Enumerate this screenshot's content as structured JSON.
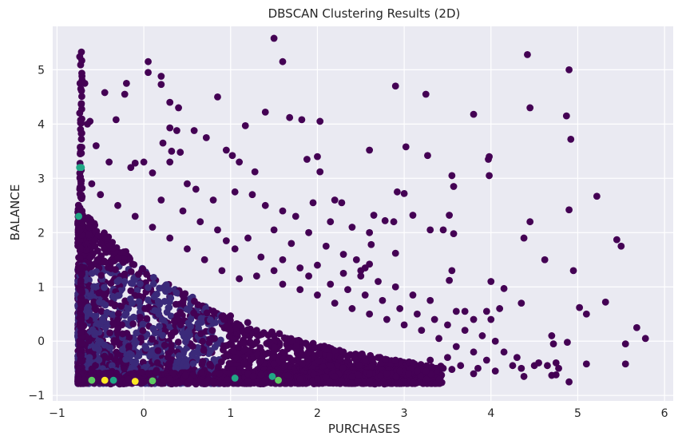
{
  "chart_data": {
    "type": "scatter",
    "title": "DBSCAN Clustering Results (2D)",
    "xlabel": "PURCHASES",
    "ylabel": "BALANCE",
    "xlim": [
      -1.05,
      6.1
    ],
    "ylim": [
      -1.1,
      5.8
    ],
    "x_ticks": [
      -1,
      0,
      1,
      2,
      3,
      4,
      5,
      6
    ],
    "y_ticks": [
      -1,
      0,
      1,
      2,
      3,
      4,
      5
    ],
    "grid": true,
    "legend": "none",
    "colors": {
      "background": "#eaeaf2",
      "grid": "#ffffff",
      "cluster_noise": "#440154",
      "cluster_main": "#3b2a7a",
      "cluster_small_teal": "#21a685",
      "cluster_small_yellow": "#fde725",
      "cluster_small_green": "#5ec962"
    },
    "series": [
      {
        "cluster": -1,
        "color": "#440154",
        "points": [
          [
            1.5,
            5.58
          ],
          [
            4.42,
            5.28
          ],
          [
            0.05,
            5.15
          ],
          [
            1.6,
            5.15
          ],
          [
            4.9,
            5.0
          ],
          [
            0.2,
            4.88
          ],
          [
            -0.68,
            4.75
          ],
          [
            -0.2,
            4.75
          ],
          [
            2.9,
            4.7
          ],
          [
            0.2,
            4.73
          ],
          [
            -0.45,
            4.58
          ],
          [
            -0.22,
            4.55
          ],
          [
            3.25,
            4.55
          ],
          [
            0.85,
            4.5
          ],
          [
            0.3,
            4.4
          ],
          [
            4.45,
            4.3
          ],
          [
            0.4,
            4.3
          ],
          [
            1.4,
            4.22
          ],
          [
            3.8,
            4.18
          ],
          [
            4.87,
            4.15
          ],
          [
            1.68,
            4.12
          ],
          [
            1.82,
            4.08
          ],
          [
            2.03,
            4.05
          ],
          [
            -0.62,
            4.05
          ],
          [
            1.17,
            3.97
          ],
          [
            -0.32,
            4.08
          ],
          [
            0.3,
            3.93
          ],
          [
            0.58,
            3.88
          ],
          [
            4.92,
            3.72
          ],
          [
            0.38,
            3.88
          ],
          [
            0.72,
            3.75
          ],
          [
            0.22,
            3.65
          ],
          [
            3.02,
            3.58
          ],
          [
            2.6,
            3.52
          ],
          [
            0.95,
            3.52
          ],
          [
            0.32,
            3.5
          ],
          [
            0.42,
            3.48
          ],
          [
            3.27,
            3.42
          ],
          [
            1.02,
            3.42
          ],
          [
            2.0,
            3.4
          ],
          [
            3.98,
            3.4
          ],
          [
            3.97,
            3.35
          ],
          [
            1.88,
            3.35
          ],
          [
            0.3,
            3.3
          ],
          [
            1.1,
            3.3
          ],
          [
            0.0,
            3.3
          ],
          [
            -0.1,
            3.28
          ],
          [
            2.03,
            3.12
          ],
          [
            1.28,
            3.12
          ],
          [
            3.55,
            3.05
          ],
          [
            3.98,
            3.05
          ],
          [
            3.57,
            2.85
          ],
          [
            0.6,
            2.8
          ],
          [
            1.05,
            2.75
          ],
          [
            2.92,
            2.75
          ],
          [
            3.0,
            2.72
          ],
          [
            5.22,
            2.67
          ],
          [
            2.2,
            2.6
          ],
          [
            2.28,
            2.55
          ],
          [
            1.95,
            2.55
          ],
          [
            4.45,
            2.2
          ],
          [
            4.9,
            2.42
          ],
          [
            3.52,
            2.32
          ],
          [
            2.88,
            2.2
          ],
          [
            2.78,
            2.22
          ],
          [
            3.1,
            2.32
          ],
          [
            2.65,
            2.32
          ],
          [
            3.3,
            2.05
          ],
          [
            3.45,
            2.05
          ],
          [
            3.57,
            1.98
          ],
          [
            4.38,
            1.9
          ],
          [
            5.45,
            1.87
          ],
          [
            5.5,
            1.75
          ],
          [
            2.62,
            1.78
          ],
          [
            2.9,
            1.62
          ],
          [
            2.6,
            1.42
          ],
          [
            4.62,
            1.5
          ],
          [
            4.95,
            1.3
          ],
          [
            3.55,
            1.3
          ],
          [
            2.5,
            1.3
          ],
          [
            2.55,
            1.35
          ],
          [
            4.0,
            1.1
          ],
          [
            3.52,
            1.12
          ],
          [
            4.15,
            0.97
          ],
          [
            5.32,
            0.72
          ],
          [
            5.02,
            0.62
          ],
          [
            5.1,
            0.5
          ],
          [
            5.68,
            0.25
          ],
          [
            5.78,
            0.05
          ],
          [
            5.55,
            -0.05
          ],
          [
            4.55,
            -0.4
          ],
          [
            4.65,
            -0.45
          ],
          [
            4.78,
            -0.5
          ],
          [
            4.75,
            -0.62
          ],
          [
            4.9,
            -0.75
          ],
          [
            5.1,
            -0.42
          ],
          [
            5.55,
            -0.42
          ],
          [
            4.75,
            -0.4
          ],
          [
            4.72,
            -0.05
          ],
          [
            4.88,
            -0.02
          ],
          [
            4.7,
            0.1
          ],
          [
            4.0,
            0.4
          ],
          [
            4.1,
            0.6
          ],
          [
            3.95,
            0.55
          ],
          [
            3.7,
            0.55
          ],
          [
            3.8,
            0.4
          ],
          [
            3.6,
            0.55
          ],
          [
            4.35,
            0.7
          ],
          [
            4.35,
            -0.5
          ],
          [
            4.25,
            -0.45
          ],
          [
            4.05,
            -0.55
          ],
          [
            3.8,
            -0.6
          ],
          [
            3.85,
            -0.5
          ],
          [
            3.55,
            -0.52
          ],
          [
            3.3,
            -0.6
          ],
          [
            3.15,
            -0.55
          ],
          [
            2.95,
            -0.55
          ],
          [
            3.05,
            -0.6
          ],
          [
            4.38,
            -0.65
          ],
          [
            4.7,
            -0.63
          ],
          [
            0.05,
            4.95
          ],
          [
            -0.65,
            4.0
          ],
          [
            -0.55,
            3.6
          ],
          [
            -0.4,
            3.3
          ],
          [
            -0.15,
            3.2
          ],
          [
            0.1,
            3.1
          ],
          [
            0.5,
            2.9
          ],
          [
            0.8,
            2.6
          ],
          [
            1.25,
            2.7
          ],
          [
            1.4,
            2.5
          ],
          [
            1.6,
            2.4
          ],
          [
            1.75,
            2.3
          ],
          [
            2.15,
            2.2
          ],
          [
            2.4,
            2.1
          ],
          [
            2.6,
            2.0
          ],
          [
            1.9,
            2.0
          ],
          [
            1.5,
            2.05
          ],
          [
            1.2,
            1.9
          ],
          [
            0.95,
            1.85
          ],
          [
            1.7,
            1.8
          ],
          [
            2.1,
            1.75
          ],
          [
            2.3,
            1.6
          ],
          [
            2.45,
            1.5
          ],
          [
            2.0,
            1.4
          ],
          [
            1.8,
            1.35
          ],
          [
            1.5,
            1.3
          ],
          [
            1.3,
            1.2
          ],
          [
            1.1,
            1.15
          ],
          [
            0.9,
            1.3
          ],
          [
            0.7,
            1.5
          ],
          [
            0.5,
            1.7
          ],
          [
            0.3,
            1.9
          ],
          [
            0.1,
            2.1
          ],
          [
            -0.1,
            2.3
          ],
          [
            -0.3,
            2.5
          ],
          [
            -0.5,
            2.7
          ],
          [
            -0.6,
            2.9
          ],
          [
            0.2,
            2.6
          ],
          [
            0.45,
            2.4
          ],
          [
            0.65,
            2.2
          ],
          [
            0.85,
            2.05
          ],
          [
            1.05,
            1.7
          ],
          [
            1.35,
            1.55
          ],
          [
            1.6,
            1.5
          ],
          [
            1.9,
            1.2
          ],
          [
            2.15,
            1.05
          ],
          [
            2.35,
            0.95
          ],
          [
            2.55,
            0.85
          ],
          [
            2.75,
            0.75
          ],
          [
            2.95,
            0.6
          ],
          [
            3.15,
            0.5
          ],
          [
            3.35,
            0.4
          ],
          [
            3.5,
            0.3
          ],
          [
            3.7,
            0.2
          ],
          [
            3.9,
            0.1
          ],
          [
            4.05,
            0.0
          ],
          [
            3.1,
            0.85
          ],
          [
            2.9,
            1.0
          ],
          [
            2.7,
            1.1
          ],
          [
            3.3,
            0.75
          ],
          [
            2.5,
            1.2
          ],
          [
            2.3,
            1.25
          ],
          [
            3.2,
            0.2
          ],
          [
            3.4,
            0.05
          ],
          [
            3.0,
            0.3
          ],
          [
            2.8,
            0.4
          ],
          [
            2.6,
            0.5
          ],
          [
            2.4,
            0.6
          ],
          [
            2.2,
            0.7
          ],
          [
            2.0,
            0.85
          ],
          [
            1.8,
            0.95
          ],
          [
            1.6,
            1.05
          ],
          [
            3.6,
            -0.1
          ],
          [
            3.8,
            -0.2
          ],
          [
            3.5,
            -0.3
          ],
          [
            3.3,
            -0.35
          ],
          [
            3.1,
            -0.4
          ],
          [
            2.9,
            -0.35
          ],
          [
            2.7,
            -0.3
          ],
          [
            2.5,
            -0.25
          ],
          [
            2.3,
            -0.2
          ],
          [
            2.1,
            -0.15
          ],
          [
            1.9,
            -0.1
          ],
          [
            1.7,
            0.0
          ],
          [
            1.5,
            0.1
          ],
          [
            1.3,
            0.2
          ],
          [
            1.1,
            0.3
          ],
          [
            0.9,
            0.45
          ],
          [
            4.15,
            -0.2
          ],
          [
            4.3,
            -0.3
          ],
          [
            4.5,
            -0.45
          ],
          [
            3.95,
            -0.35
          ],
          [
            3.65,
            -0.45
          ],
          [
            3.45,
            -0.5
          ],
          [
            3.25,
            -0.55
          ],
          [
            2.8,
            -0.6
          ],
          [
            2.6,
            -0.6
          ],
          [
            2.4,
            -0.65
          ],
          [
            2.2,
            -0.65
          ],
          [
            2.0,
            -0.7
          ],
          [
            1.8,
            -0.7
          ],
          [
            1.6,
            -0.72
          ],
          [
            1.4,
            -0.72
          ],
          [
            1.2,
            -0.74
          ]
        ]
      },
      {
        "cluster": 0,
        "color": "#3b2a7a",
        "points": []
      },
      {
        "cluster": 1,
        "color": "#21a685",
        "points": [
          [
            -0.74,
            3.2
          ],
          [
            -0.72,
            3.2
          ],
          [
            -0.75,
            2.3
          ],
          [
            1.48,
            -0.65
          ],
          [
            -0.35,
            -0.72
          ],
          [
            1.05,
            -0.68
          ]
        ]
      },
      {
        "cluster": 2,
        "color": "#fde725",
        "points": [
          [
            -0.45,
            -0.72
          ],
          [
            -0.1,
            -0.74
          ]
        ]
      },
      {
        "cluster": 3,
        "color": "#5ec962",
        "points": [
          [
            0.1,
            -0.73
          ],
          [
            -0.6,
            -0.72
          ],
          [
            1.55,
            -0.72
          ]
        ]
      }
    ]
  }
}
